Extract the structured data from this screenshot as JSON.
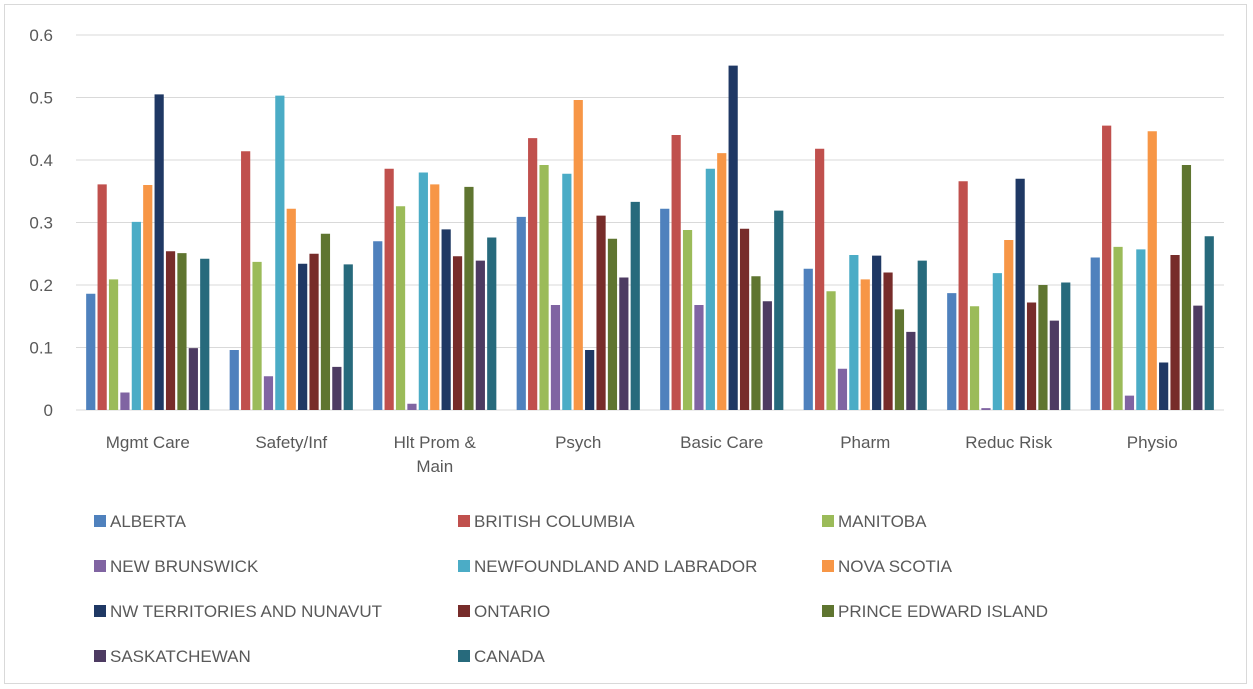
{
  "chart_data": {
    "type": "bar",
    "title": "",
    "xlabel": "",
    "ylabel": "",
    "ylim": [
      0,
      0.6
    ],
    "yticks": [
      "0",
      "0.1",
      "0.2",
      "0.3",
      "0.4",
      "0.5",
      "0.6"
    ],
    "grid": true,
    "legend_position": "bottom",
    "categories": [
      [
        "Mgmt Care"
      ],
      [
        "Safety/Inf"
      ],
      [
        "Hlt Prom &",
        "Main"
      ],
      [
        "Psych"
      ],
      [
        "Basic Care"
      ],
      [
        "Pharm"
      ],
      [
        "Reduc Risk"
      ],
      [
        "Physio"
      ]
    ],
    "series": [
      {
        "name": "ALBERTA",
        "color": "#4f81bd",
        "values": [
          0.186,
          0.096,
          0.27,
          0.309,
          0.322,
          0.226,
          0.187,
          0.244
        ]
      },
      {
        "name": "BRITISH COLUMBIA",
        "color": "#c0504d",
        "values": [
          0.361,
          0.414,
          0.386,
          0.435,
          0.44,
          0.418,
          0.366,
          0.455
        ]
      },
      {
        "name": "MANITOBA",
        "color": "#9bbb59",
        "values": [
          0.209,
          0.237,
          0.326,
          0.392,
          0.288,
          0.19,
          0.166,
          0.261
        ]
      },
      {
        "name": "NEW BRUNSWICK",
        "color": "#8064a2",
        "values": [
          0.028,
          0.054,
          0.01,
          0.168,
          0.168,
          0.066,
          0.003,
          0.023
        ]
      },
      {
        "name": "NEWFOUNDLAND AND LABRADOR",
        "color": "#4bacc6",
        "values": [
          0.301,
          0.503,
          0.38,
          0.378,
          0.386,
          0.248,
          0.219,
          0.257
        ]
      },
      {
        "name": "NOVA SCOTIA",
        "color": "#f79646",
        "values": [
          0.36,
          0.322,
          0.361,
          0.496,
          0.411,
          0.209,
          0.272,
          0.446
        ]
      },
      {
        "name": "NW TERRITORIES AND NUNAVUT",
        "color": "#1f3864",
        "values": [
          0.505,
          0.234,
          0.289,
          0.096,
          0.551,
          0.247,
          0.37,
          0.076
        ]
      },
      {
        "name": "ONTARIO",
        "color": "#772c2a",
        "values": [
          0.254,
          0.25,
          0.246,
          0.311,
          0.29,
          0.22,
          0.172,
          0.248
        ]
      },
      {
        "name": "PRINCE EDWARD ISLAND",
        "color": "#5f7530",
        "values": [
          0.251,
          0.282,
          0.357,
          0.274,
          0.214,
          0.161,
          0.2,
          0.392
        ]
      },
      {
        "name": "SASKATCHEWAN",
        "color": "#4d3b62",
        "values": [
          0.099,
          0.069,
          0.239,
          0.212,
          0.174,
          0.125,
          0.143,
          0.167
        ]
      },
      {
        "name": "CANADA",
        "color": "#276a7c",
        "values": [
          0.242,
          0.233,
          0.276,
          0.333,
          0.319,
          0.239,
          0.204,
          0.278
        ]
      }
    ]
  }
}
